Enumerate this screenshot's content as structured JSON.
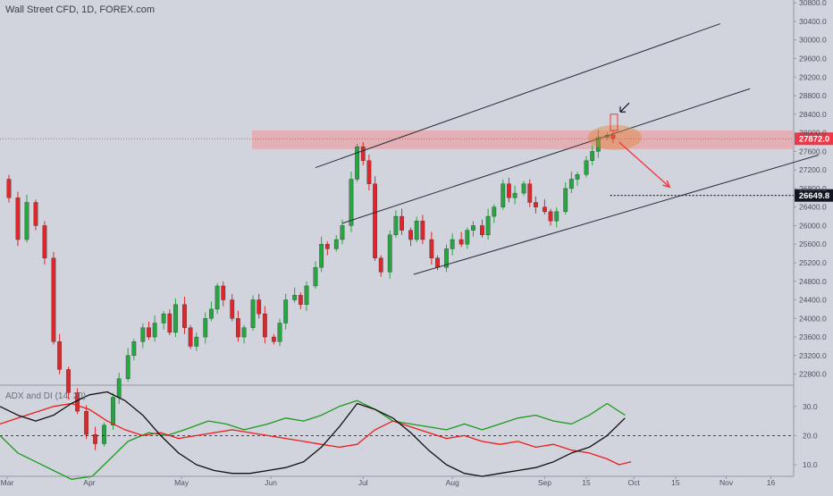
{
  "header": {
    "title": "Wall Street CFD, 1D, FOREX.com"
  },
  "indicator": {
    "title": "ADX and DI (14, 20)"
  },
  "colors": {
    "background": "#d1d4dc",
    "up_candle": "#26a641",
    "down_candle": "#e0262a",
    "zone_fill": "#e8a4a8",
    "current_price_badge": "#f23645",
    "target_badge": "#131722",
    "di_plus": "#1e9a1e",
    "di_minus": "#ee1c1c",
    "adx": "#111111"
  },
  "chart_data": [
    {
      "type": "candlestick",
      "title": "Wall Street CFD, 1D, FOREX.com",
      "x_axis": {
        "tick_labels": [
          "Mar",
          "Apr",
          "May",
          "Jun",
          "Jul",
          "Aug",
          "Sep",
          "15",
          "Oct",
          "15",
          "Nov",
          "16"
        ],
        "range_days": [
          0,
          268
        ]
      },
      "y_axis": {
        "ylim": [
          22600,
          30900
        ],
        "tick_labels": [
          "30800.0",
          "30400.0",
          "30000.0",
          "29600.0",
          "29200.0",
          "28800.0",
          "28400.0",
          "28000.0",
          "27600.0",
          "27200.0",
          "26800.0",
          "26400.0",
          "26000.0",
          "25600.0",
          "25200.0",
          "24800.0",
          "24400.0",
          "24000.0",
          "23600.0",
          "23200.0",
          "22800.0"
        ],
        "tick_values": [
          30800,
          30400,
          30000,
          29600,
          29200,
          28800,
          28400,
          28000,
          27600,
          27200,
          26800,
          26400,
          26000,
          25600,
          25200,
          24800,
          24400,
          24000,
          23600,
          23200,
          22800
        ]
      },
      "series_close": [
        {
          "d": 0,
          "c": 27000
        },
        {
          "d": 3,
          "c": 26600
        },
        {
          "d": 6,
          "c": 25700
        },
        {
          "d": 9,
          "c": 26500
        },
        {
          "d": 12,
          "c": 26000
        },
        {
          "d": 15,
          "c": 25300
        },
        {
          "d": 18,
          "c": 23500
        },
        {
          "d": 20,
          "c": 22900
        },
        {
          "d": 23,
          "c": 22400
        },
        {
          "d": 26,
          "c": 22000
        },
        {
          "d": 29,
          "c": 21500
        },
        {
          "d": 32,
          "c": 21300
        },
        {
          "d": 35,
          "c": 21700
        },
        {
          "d": 38,
          "c": 22300
        },
        {
          "d": 40,
          "c": 22700
        },
        {
          "d": 43,
          "c": 23200
        },
        {
          "d": 45,
          "c": 23500
        },
        {
          "d": 48,
          "c": 23800
        },
        {
          "d": 50,
          "c": 23600
        },
        {
          "d": 52,
          "c": 23900
        },
        {
          "d": 55,
          "c": 24100
        },
        {
          "d": 57,
          "c": 23700
        },
        {
          "d": 59,
          "c": 24300
        },
        {
          "d": 62,
          "c": 23800
        },
        {
          "d": 64,
          "c": 23400
        },
        {
          "d": 66,
          "c": 23600
        },
        {
          "d": 69,
          "c": 24000
        },
        {
          "d": 71,
          "c": 24200
        },
        {
          "d": 73,
          "c": 24700
        },
        {
          "d": 75,
          "c": 24400
        },
        {
          "d": 78,
          "c": 24000
        },
        {
          "d": 80,
          "c": 23600
        },
        {
          "d": 82,
          "c": 23800
        },
        {
          "d": 85,
          "c": 24400
        },
        {
          "d": 87,
          "c": 24100
        },
        {
          "d": 89,
          "c": 23600
        },
        {
          "d": 92,
          "c": 23500
        },
        {
          "d": 94,
          "c": 23900
        },
        {
          "d": 96,
          "c": 24400
        },
        {
          "d": 99,
          "c": 24500
        },
        {
          "d": 101,
          "c": 24300
        },
        {
          "d": 103,
          "c": 24700
        },
        {
          "d": 106,
          "c": 25100
        },
        {
          "d": 108,
          "c": 25600
        },
        {
          "d": 110,
          "c": 25500
        },
        {
          "d": 113,
          "c": 25700
        },
        {
          "d": 115,
          "c": 26000
        },
        {
          "d": 118,
          "c": 27000
        },
        {
          "d": 120,
          "c": 27700
        },
        {
          "d": 122,
          "c": 27400
        },
        {
          "d": 124,
          "c": 26900
        },
        {
          "d": 126,
          "c": 25300
        },
        {
          "d": 128,
          "c": 25000
        },
        {
          "d": 131,
          "c": 25800
        },
        {
          "d": 133,
          "c": 26200
        },
        {
          "d": 135,
          "c": 25900
        },
        {
          "d": 138,
          "c": 25700
        },
        {
          "d": 140,
          "c": 26100
        },
        {
          "d": 142,
          "c": 25700
        },
        {
          "d": 145,
          "c": 25300
        },
        {
          "d": 147,
          "c": 25100
        },
        {
          "d": 150,
          "c": 25500
        },
        {
          "d": 152,
          "c": 25700
        },
        {
          "d": 155,
          "c": 25600
        },
        {
          "d": 157,
          "c": 25900
        },
        {
          "d": 159,
          "c": 26000
        },
        {
          "d": 162,
          "c": 25800
        },
        {
          "d": 164,
          "c": 26200
        },
        {
          "d": 166,
          "c": 26400
        },
        {
          "d": 169,
          "c": 26900
        },
        {
          "d": 171,
          "c": 26600
        },
        {
          "d": 173,
          "c": 26700
        },
        {
          "d": 176,
          "c": 26900
        },
        {
          "d": 178,
          "c": 26500
        },
        {
          "d": 180,
          "c": 26400
        },
        {
          "d": 183,
          "c": 26300
        },
        {
          "d": 185,
          "c": 26100
        },
        {
          "d": 187,
          "c": 26300
        },
        {
          "d": 190,
          "c": 26800
        },
        {
          "d": 192,
          "c": 27000
        },
        {
          "d": 194,
          "c": 27100
        },
        {
          "d": 197,
          "c": 27400
        },
        {
          "d": 199,
          "c": 27600
        },
        {
          "d": 201,
          "c": 27900
        },
        {
          "d": 204,
          "c": 27950
        },
        {
          "d": 206,
          "c": 27872
        }
      ],
      "horizontal_levels": [
        {
          "price": 27872.0,
          "label": "27872.0",
          "style": "dotted",
          "color": "#f23645"
        },
        {
          "price": 26649.8,
          "label": "26649.8",
          "style": "dotted",
          "color": "#131722"
        }
      ],
      "resistance_zone": {
        "from": 27650,
        "to": 28050
      },
      "channel_lines": [
        {
          "d1": 106,
          "p1": 27250,
          "d2": 242,
          "p2": 30350
        },
        {
          "d1": 115,
          "p1": 26050,
          "d2": 252,
          "p2": 28950
        },
        {
          "d1": 139,
          "p1": 24950,
          "d2": 275,
          "p2": 27520
        }
      ],
      "projection_arrow": {
        "d1": 208,
        "p1": 27800,
        "d2": 225,
        "p2": 26830
      }
    },
    {
      "type": "line",
      "title": "ADX and DI (14, 20)",
      "y_axis": {
        "ylim": [
          6,
          37
        ],
        "tick_labels": [
          "30.0",
          "20.0",
          "10.0"
        ],
        "tick_values": [
          30,
          20,
          10
        ],
        "reference_line": 20
      },
      "series": [
        {
          "name": "DI+",
          "color": "#1e9a1e",
          "points": [
            {
              "d": 0,
              "v": 20
            },
            {
              "d": 6,
              "v": 14
            },
            {
              "d": 12,
              "v": 11
            },
            {
              "d": 18,
              "v": 8
            },
            {
              "d": 24,
              "v": 5
            },
            {
              "d": 31,
              "v": 6
            },
            {
              "d": 37,
              "v": 12
            },
            {
              "d": 43,
              "v": 18
            },
            {
              "d": 50,
              "v": 21
            },
            {
              "d": 56,
              "v": 20
            },
            {
              "d": 62,
              "v": 22
            },
            {
              "d": 70,
              "v": 25
            },
            {
              "d": 76,
              "v": 24
            },
            {
              "d": 82,
              "v": 22
            },
            {
              "d": 90,
              "v": 24
            },
            {
              "d": 96,
              "v": 26
            },
            {
              "d": 102,
              "v": 25
            },
            {
              "d": 108,
              "v": 27
            },
            {
              "d": 114,
              "v": 30
            },
            {
              "d": 120,
              "v": 32
            },
            {
              "d": 126,
              "v": 29
            },
            {
              "d": 132,
              "v": 25
            },
            {
              "d": 138,
              "v": 24
            },
            {
              "d": 144,
              "v": 23
            },
            {
              "d": 150,
              "v": 22
            },
            {
              "d": 156,
              "v": 24
            },
            {
              "d": 162,
              "v": 22
            },
            {
              "d": 168,
              "v": 24
            },
            {
              "d": 174,
              "v": 26
            },
            {
              "d": 180,
              "v": 27
            },
            {
              "d": 186,
              "v": 25
            },
            {
              "d": 192,
              "v": 24
            },
            {
              "d": 198,
              "v": 27
            },
            {
              "d": 204,
              "v": 31
            },
            {
              "d": 210,
              "v": 27
            }
          ]
        },
        {
          "name": "DI-",
          "color": "#ee1c1c",
          "points": [
            {
              "d": 0,
              "v": 24
            },
            {
              "d": 6,
              "v": 26
            },
            {
              "d": 12,
              "v": 28
            },
            {
              "d": 18,
              "v": 30
            },
            {
              "d": 24,
              "v": 31
            },
            {
              "d": 30,
              "v": 29
            },
            {
              "d": 36,
              "v": 25
            },
            {
              "d": 42,
              "v": 22
            },
            {
              "d": 48,
              "v": 20
            },
            {
              "d": 54,
              "v": 21
            },
            {
              "d": 60,
              "v": 19
            },
            {
              "d": 66,
              "v": 20
            },
            {
              "d": 72,
              "v": 21
            },
            {
              "d": 78,
              "v": 22
            },
            {
              "d": 84,
              "v": 21
            },
            {
              "d": 90,
              "v": 20
            },
            {
              "d": 96,
              "v": 19
            },
            {
              "d": 102,
              "v": 18
            },
            {
              "d": 108,
              "v": 17
            },
            {
              "d": 114,
              "v": 16
            },
            {
              "d": 120,
              "v": 17
            },
            {
              "d": 126,
              "v": 22
            },
            {
              "d": 132,
              "v": 25
            },
            {
              "d": 138,
              "v": 23
            },
            {
              "d": 144,
              "v": 21
            },
            {
              "d": 150,
              "v": 19
            },
            {
              "d": 156,
              "v": 20
            },
            {
              "d": 162,
              "v": 18
            },
            {
              "d": 168,
              "v": 17
            },
            {
              "d": 174,
              "v": 18
            },
            {
              "d": 180,
              "v": 16
            },
            {
              "d": 186,
              "v": 17
            },
            {
              "d": 192,
              "v": 15
            },
            {
              "d": 198,
              "v": 14
            },
            {
              "d": 204,
              "v": 12
            },
            {
              "d": 208,
              "v": 10
            },
            {
              "d": 212,
              "v": 11
            }
          ]
        },
        {
          "name": "ADX",
          "color": "#111111",
          "points": [
            {
              "d": 0,
              "v": 30
            },
            {
              "d": 6,
              "v": 27
            },
            {
              "d": 12,
              "v": 25
            },
            {
              "d": 18,
              "v": 27
            },
            {
              "d": 24,
              "v": 31
            },
            {
              "d": 30,
              "v": 34
            },
            {
              "d": 36,
              "v": 35
            },
            {
              "d": 42,
              "v": 32
            },
            {
              "d": 48,
              "v": 27
            },
            {
              "d": 54,
              "v": 20
            },
            {
              "d": 60,
              "v": 14
            },
            {
              "d": 66,
              "v": 10
            },
            {
              "d": 72,
              "v": 8
            },
            {
              "d": 78,
              "v": 7
            },
            {
              "d": 84,
              "v": 7
            },
            {
              "d": 90,
              "v": 8
            },
            {
              "d": 96,
              "v": 9
            },
            {
              "d": 102,
              "v": 11
            },
            {
              "d": 108,
              "v": 16
            },
            {
              "d": 114,
              "v": 23
            },
            {
              "d": 120,
              "v": 31
            },
            {
              "d": 126,
              "v": 29
            },
            {
              "d": 132,
              "v": 26
            },
            {
              "d": 138,
              "v": 21
            },
            {
              "d": 144,
              "v": 15
            },
            {
              "d": 150,
              "v": 10
            },
            {
              "d": 156,
              "v": 7
            },
            {
              "d": 162,
              "v": 6
            },
            {
              "d": 168,
              "v": 7
            },
            {
              "d": 174,
              "v": 8
            },
            {
              "d": 180,
              "v": 9
            },
            {
              "d": 186,
              "v": 11
            },
            {
              "d": 192,
              "v": 14
            },
            {
              "d": 198,
              "v": 16
            },
            {
              "d": 204,
              "v": 20
            },
            {
              "d": 210,
              "v": 26
            }
          ]
        }
      ]
    }
  ]
}
